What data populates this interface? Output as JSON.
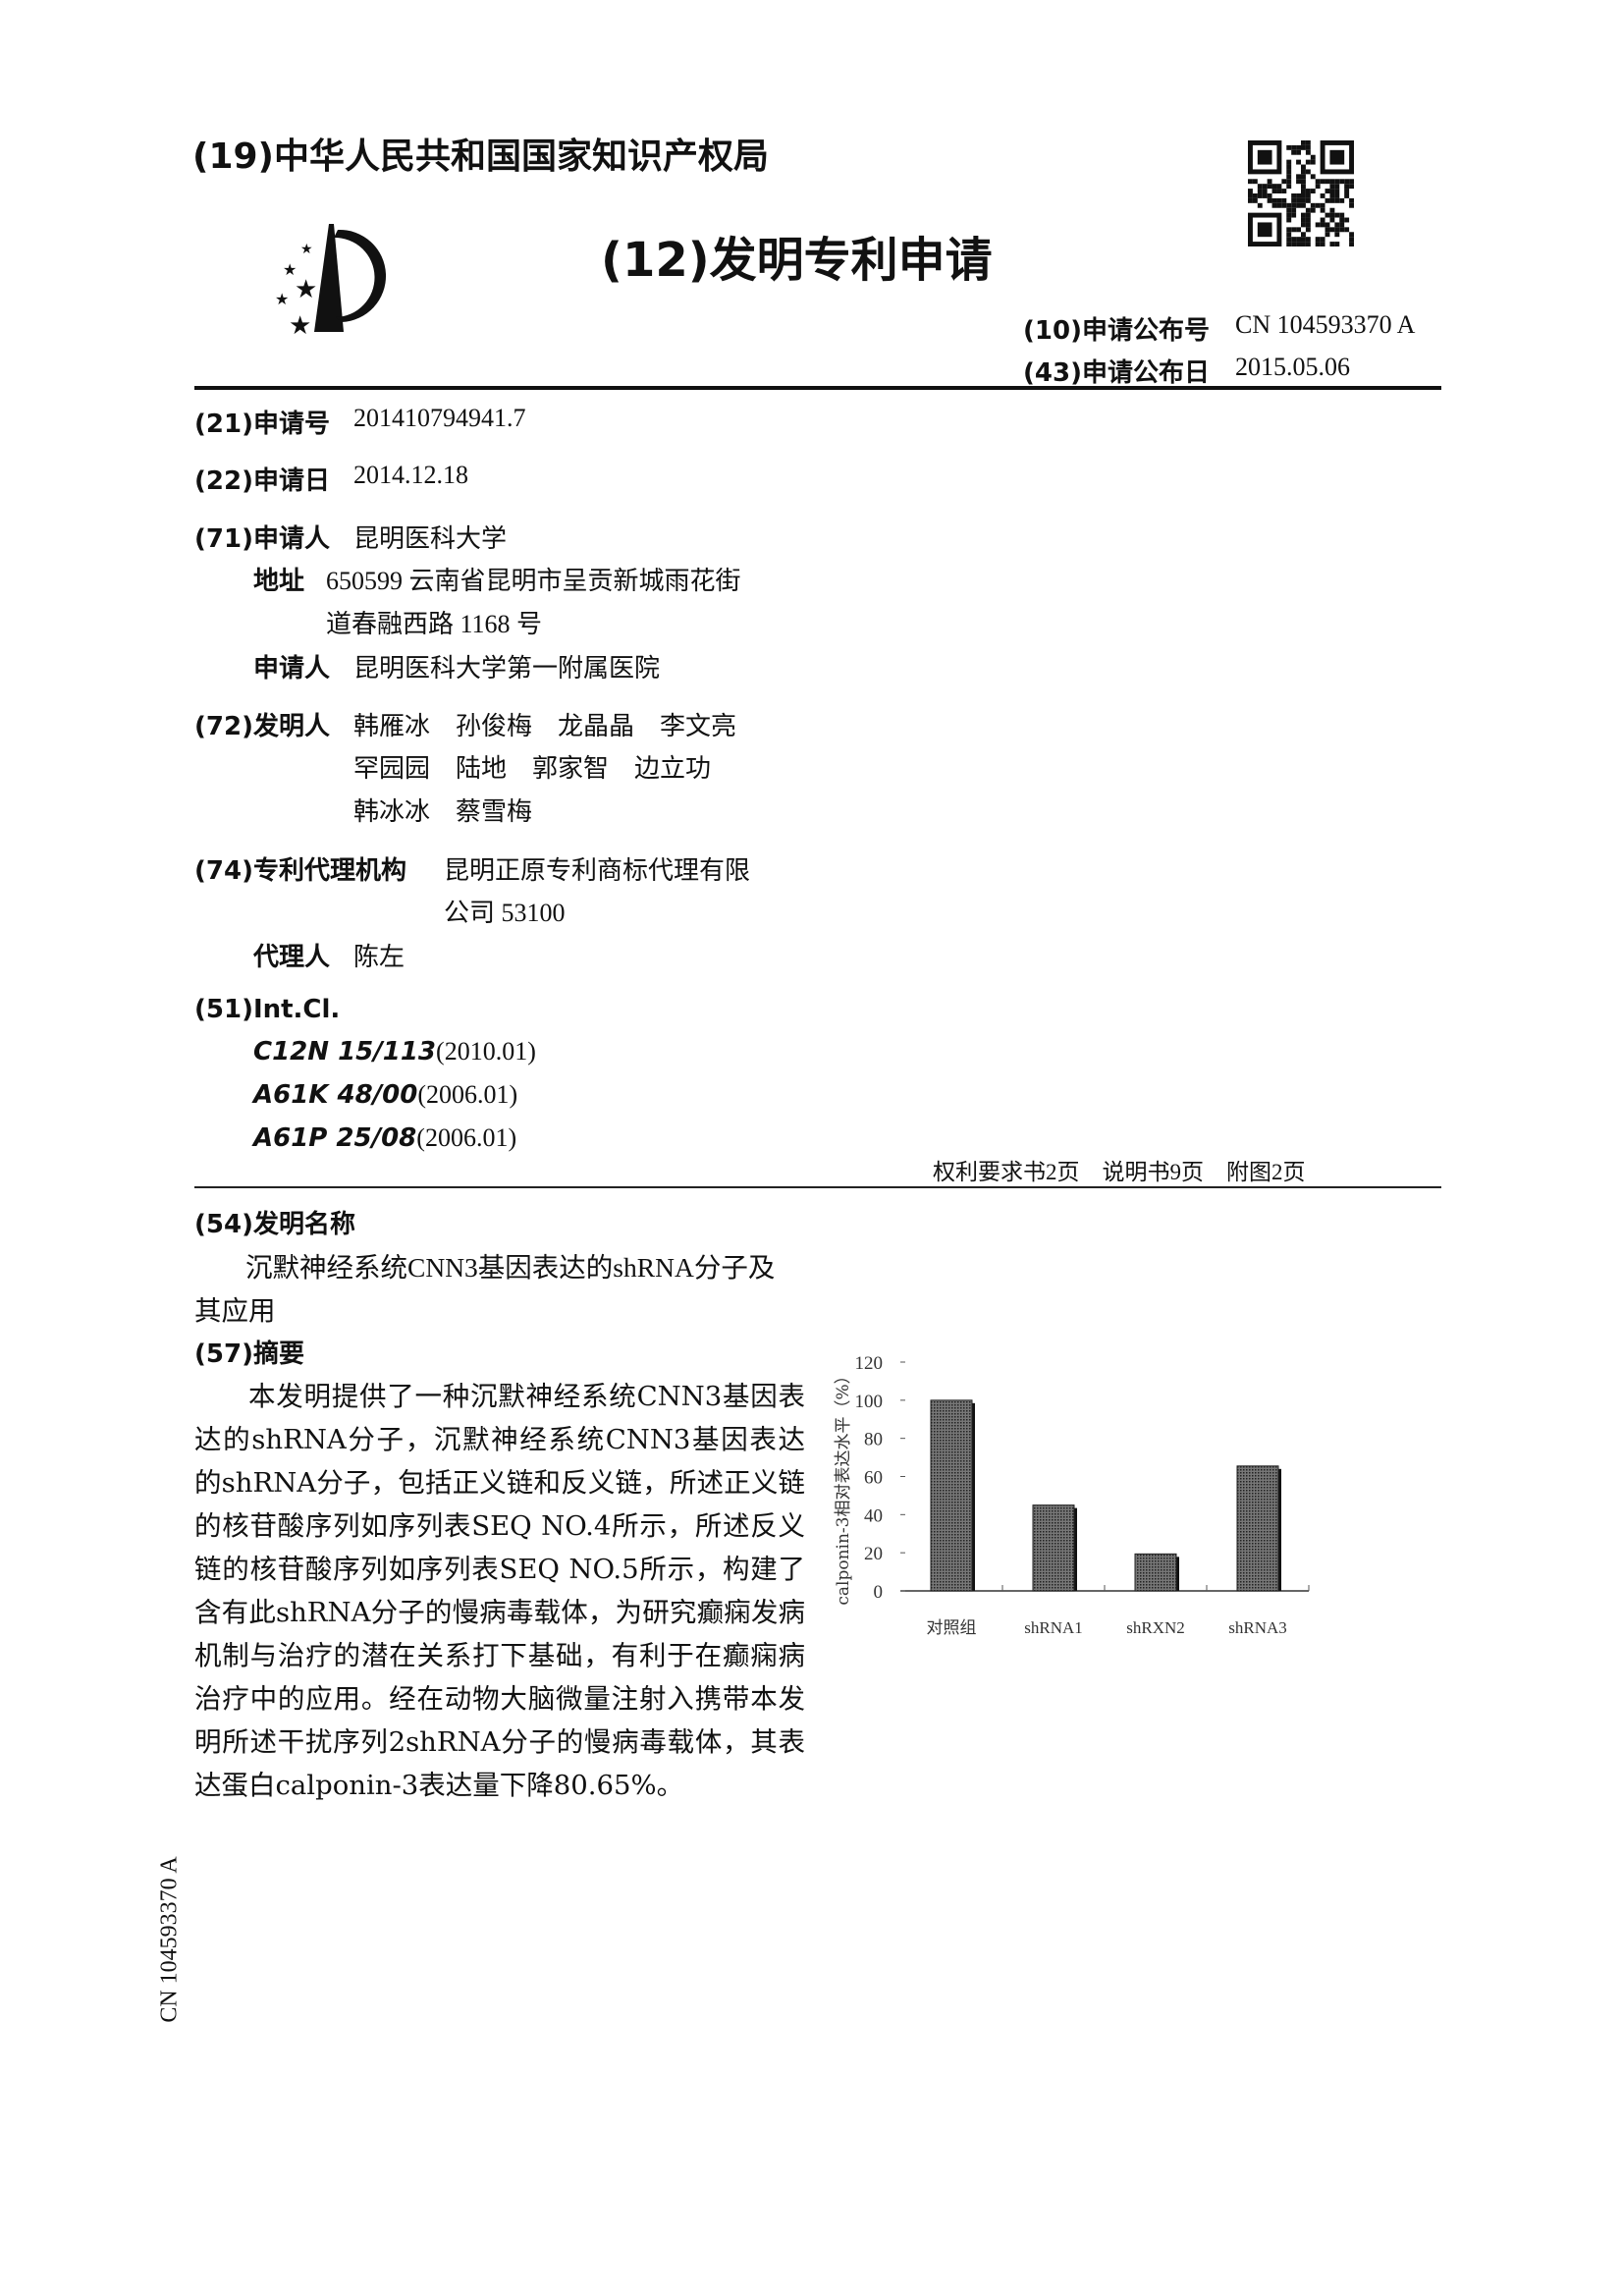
{
  "header": {
    "office": "(19)中华人民共和国国家知识产权局",
    "doc_type": "(12)发明专利申请",
    "pub_no_label": "(10)申请公布号",
    "pub_no": "CN 104593370 A",
    "pub_date_label": "(43)申请公布日",
    "pub_date": "2015.05.06",
    "logo_icon": "cnipa-logo",
    "qr_icon": "qr-code"
  },
  "biblio": {
    "app_no_label": "(21)申请号",
    "app_no": "201410794941.7",
    "app_date_label": "(22)申请日",
    "app_date": "2014.12.18",
    "applicant_label": "(71)申请人",
    "applicant": "昆明医科大学",
    "address_label": "地址",
    "address_line1": "650599 云南省昆明市呈贡新城雨花街",
    "address_line2": "道春融西路 1168 号",
    "applicant2_label": "申请人",
    "applicant2": "昆明医科大学第一附属医院",
    "inventors_label": "(72)发明人",
    "inventors_lines": [
      "韩雁冰　孙俊梅　龙晶晶　李文亮",
      "罕园园　陆地　郭家智　边立功",
      "韩冰冰　蔡雪梅"
    ],
    "agency_label": "(74)专利代理机构",
    "agency_line1": "昆明正原专利商标代理有限",
    "agency_line2": "公司 53100",
    "agent_label": "代理人",
    "agent": "陈左",
    "intcl_label": "(51)Int.Cl.",
    "intcl": [
      {
        "code": "C12N 15/113",
        "ver": "(2010.01)"
      },
      {
        "code": "A61K 48/00",
        "ver": "(2006.01)"
      },
      {
        "code": "A61P 25/08",
        "ver": "(2006.01)"
      }
    ],
    "pages": "权利要求书2页　说明书9页　附图2页"
  },
  "title_section": {
    "label": "(54)发明名称",
    "line1": "沉默神经系统CNN3基因表达的shRNA分子及",
    "line2": "其应用"
  },
  "abstract": {
    "label": "(57)摘要",
    "text": "本发明提供了一种沉默神经系统CNN3基因表达的shRNA分子，沉默神经系统CNN3基因表达的shRNA分子，包括正义链和反义链，所述正义链的核苷酸序列如序列表SEQ NO.4所示，所述反义链的核苷酸序列如序列表SEQ NO.5所示，构建了含有此shRNA分子的慢病毒载体，为研究癫痫发病机制与治疗的潜在关系打下基础，有利于在癫痫病治疗中的应用。经在动物大脑微量注射入携带本发明所述干扰序列2shRNA分子的慢病毒载体，其表达蛋白calponin-3表达量下降80.65%。"
  },
  "side_text": "CN 104593370 A",
  "chart_data": {
    "type": "bar",
    "categories": [
      "对照组",
      "shRNA1",
      "shRXN2",
      "shRNA3"
    ],
    "values": [
      100,
      45,
      19.4,
      65.5
    ],
    "ylabel": "calponin-3相对表达水平（%）",
    "yticks": [
      "0",
      "20",
      "40",
      "60",
      "80",
      "100",
      "120"
    ],
    "ylim": [
      0,
      120
    ],
    "grid": false,
    "bar_color": "#555555"
  }
}
